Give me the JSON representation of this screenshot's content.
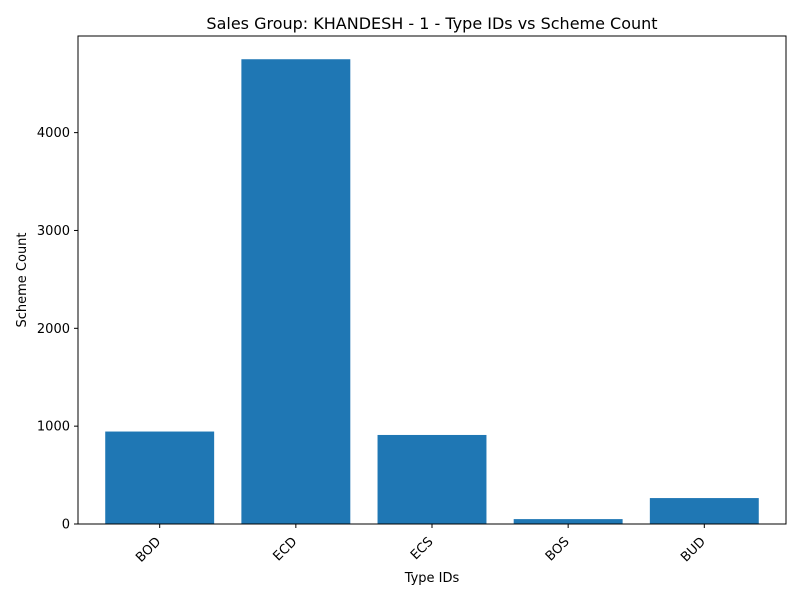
{
  "chart_data": {
    "type": "bar",
    "title": "Sales Group: KHANDESH - 1 - Type IDs vs Scheme Count",
    "xlabel": "Type IDs",
    "ylabel": "Scheme Count",
    "categories": [
      "BOD",
      "ECD",
      "ECS",
      "BOS",
      "BUD"
    ],
    "values": [
      945,
      4750,
      910,
      50,
      265
    ],
    "ylim": [
      0,
      4987.5
    ],
    "yticks": [
      0,
      1000,
      2000,
      3000,
      4000
    ],
    "ytick_labels": [
      "0",
      "1000",
      "2000",
      "3000",
      "4000"
    ],
    "xtick_rotation_deg": 45,
    "grid": false,
    "legend": "none",
    "bar_color": "#1f77b4"
  }
}
